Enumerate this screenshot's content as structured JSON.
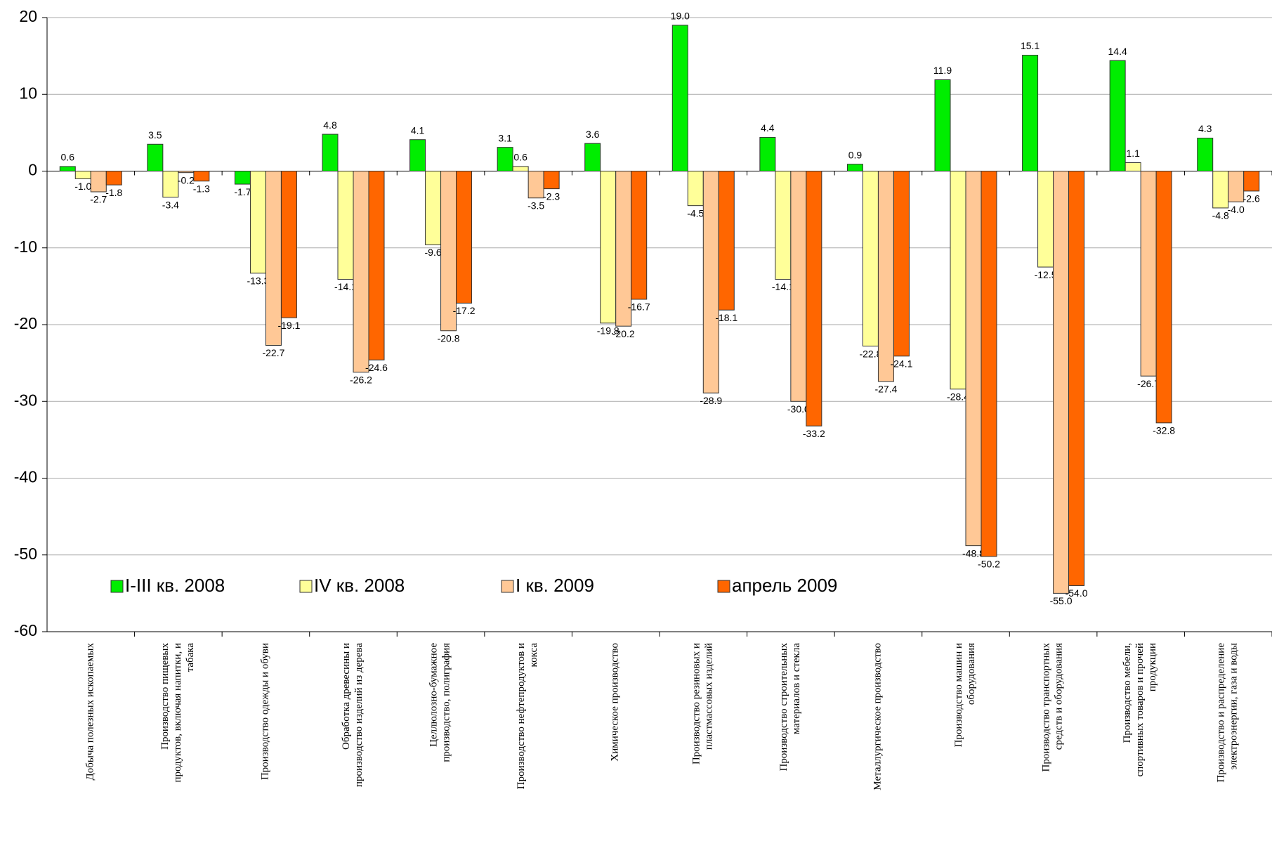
{
  "chart_data": {
    "type": "bar",
    "categories": [
      "Добыча полезных ископаемых",
      "Производство пищевых\nпродуктов, включая напитки, и\nтабака",
      "Производство одежды и обуви",
      "Обработка древесины и\nпроизводство изделий из дерева",
      "Целлюлозно-бумажное\nпроизводство, полиграфия",
      "Производство нефтепродуктов и\nкокса",
      "Химическое производство",
      "Производство резиновых и\nпластмассовых изделий",
      "Производство строительных\nматериалов и стекла",
      "Металлургическое производство",
      "Производство машин и\nоборудования",
      "Производство транспортных\nсредств и оборудования",
      "Производство мебели,\nспортивных товаров и прочей\nпродукции",
      "Производство и распределение\nэлектроэнергии, газа и воды"
    ],
    "series": [
      {
        "name": "I-III кв. 2008",
        "color": "#00ee00",
        "values": [
          0.6,
          3.5,
          -1.7,
          4.8,
          4.1,
          3.1,
          3.6,
          19.0,
          4.4,
          0.9,
          11.9,
          15.1,
          14.4,
          4.3
        ],
        "value_labels": [
          "0.6",
          "3.5",
          "-1.7",
          "4.8",
          "4.1",
          "3.1",
          "3.6",
          "19.0",
          "4.4",
          "0.9",
          "11.9",
          "15.1",
          "14.4",
          "4.3"
        ]
      },
      {
        "name": "IV кв. 2008",
        "color": "#ffff99",
        "values": [
          -1.0,
          -3.4,
          -13.3,
          -14.1,
          -9.6,
          0.6,
          -19.8,
          -4.5,
          -14.1,
          -22.8,
          -28.4,
          -12.5,
          1.1,
          -4.8
        ],
        "value_labels": [
          "-1.0",
          "-3.4",
          "-13.3",
          "-14.1",
          "-9.6",
          "0.6",
          "-19.8",
          "-4.5",
          "-14.1",
          "-22.8",
          "-28.4",
          "-12.5",
          "1.1",
          "-4.8"
        ]
      },
      {
        "name": "I кв. 2009",
        "color": "#ffc896",
        "values": [
          -2.7,
          -0.2,
          -22.7,
          -26.2,
          -20.8,
          -3.5,
          -20.2,
          -28.9,
          -30.0,
          -27.4,
          -48.8,
          -55.0,
          -26.7,
          -4.0
        ],
        "value_labels": [
          "-2.7",
          "-0.2",
          "-22.7",
          "-26.2",
          "-20.8",
          "-3.5",
          "-20.2",
          "-28.9",
          "-30.0",
          "-27.4",
          "-48.8",
          "-55.0",
          "-26.7",
          "-4.0"
        ]
      },
      {
        "name": "апрель 2009",
        "color": "#ff6600",
        "values": [
          -1.8,
          -1.3,
          -19.1,
          -24.6,
          -17.2,
          -2.3,
          -16.7,
          -18.1,
          -33.2,
          -24.1,
          -50.2,
          -54.0,
          -32.8,
          -2.6
        ],
        "value_labels": [
          "-1.8",
          "-1.3",
          "-19.1",
          "-24.6",
          "-17.2",
          "-2.3",
          "-16.7",
          "-18.1",
          "-33.2",
          "-24.1",
          "-50.2",
          "-54.0",
          "-32.8",
          "-2.6"
        ]
      }
    ],
    "ylim": [
      -60,
      20
    ],
    "yticks": [
      -60,
      -50,
      -40,
      -30,
      -20,
      -10,
      0,
      10,
      20
    ],
    "grid": true,
    "legend": "bottom-left"
  }
}
